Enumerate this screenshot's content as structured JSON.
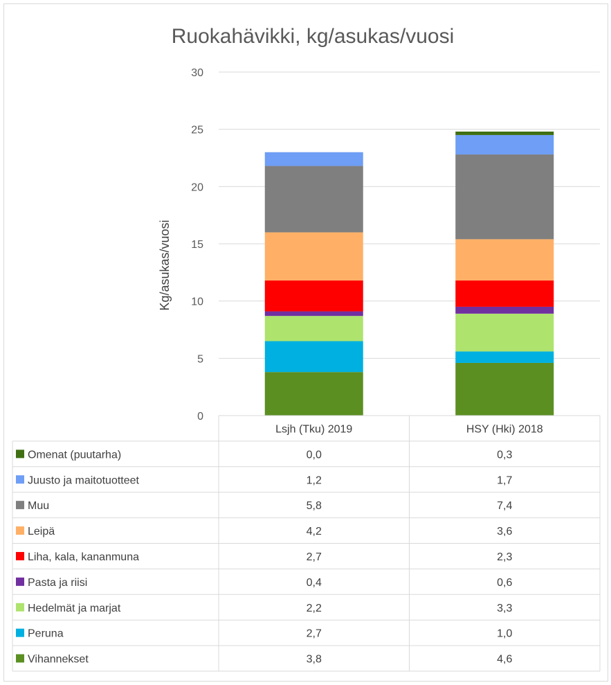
{
  "chart_data": {
    "type": "bar",
    "stacked": true,
    "title": "Ruokahävikki, kg/asukas/vuosi",
    "ylabel": "Kg/asukas/vuosi",
    "ylim": [
      0,
      30
    ],
    "yticks": [
      0,
      5,
      10,
      15,
      20,
      25,
      30
    ],
    "grid": true,
    "legend": "data-table",
    "categories": [
      "Lsjh (Tku) 2019",
      "HSY (Hki) 2018"
    ],
    "series": [
      {
        "name": "Vihannekset",
        "color": "#5b8f22",
        "values": [
          3.8,
          4.6
        ],
        "labels": [
          "3,8",
          "4,6"
        ]
      },
      {
        "name": "Peruna",
        "color": "#00b0e0",
        "values": [
          2.7,
          1.0
        ],
        "labels": [
          "2,7",
          "1,0"
        ]
      },
      {
        "name": "Hedelmät ja marjat",
        "color": "#aee36e",
        "values": [
          2.2,
          3.3
        ],
        "labels": [
          "2,2",
          "3,3"
        ]
      },
      {
        "name": "Pasta ja riisi",
        "color": "#7030a0",
        "values": [
          0.4,
          0.6
        ],
        "labels": [
          "0,4",
          "0,6"
        ]
      },
      {
        "name": "Liha, kala, kananmuna",
        "color": "#ff0000",
        "values": [
          2.7,
          2.3
        ],
        "labels": [
          "2,7",
          "2,3"
        ]
      },
      {
        "name": "Leipä",
        "color": "#ffb066",
        "values": [
          4.2,
          3.6
        ],
        "labels": [
          "4,2",
          "3,6"
        ]
      },
      {
        "name": "Muu",
        "color": "#7f7f7f",
        "values": [
          5.8,
          7.4
        ],
        "labels": [
          "5,8",
          "7,4"
        ]
      },
      {
        "name": "Juusto ja maitotuotteet",
        "color": "#6e9ef5",
        "values": [
          1.2,
          1.7
        ],
        "labels": [
          "1,2",
          "1,7"
        ]
      },
      {
        "name": "Omenat (puutarha)",
        "color": "#3f6f12",
        "values": [
          0.0,
          0.3
        ],
        "labels": [
          "0,0",
          "0,3"
        ]
      }
    ]
  }
}
